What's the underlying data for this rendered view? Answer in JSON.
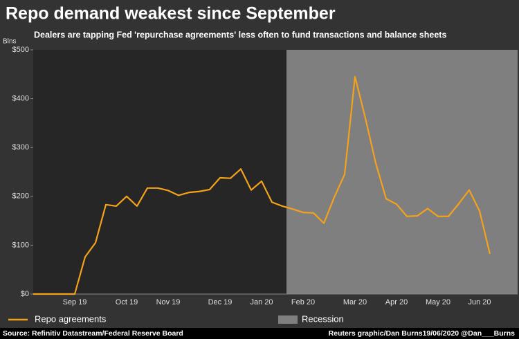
{
  "chart_data": {
    "type": "line",
    "title": "Repo demand weakest since September",
    "subtitle": "Dealers are tapping Fed 'repurchase agreements' less often to fund transactions and balance sheets",
    "y_unit": "Blns",
    "categories": [
      null,
      null,
      null,
      null,
      "Sep 19",
      null,
      null,
      null,
      null,
      "Oct 19",
      null,
      null,
      null,
      "Nov 19",
      null,
      null,
      null,
      null,
      "Dec 19",
      null,
      null,
      null,
      "Jan 20",
      null,
      null,
      null,
      "Feb 20",
      null,
      null,
      null,
      null,
      "Mar 20",
      null,
      null,
      null,
      "Apr 20",
      null,
      null,
      null,
      "May 20",
      null,
      null,
      null,
      "Jun 20",
      null
    ],
    "series": [
      {
        "name": "Repo agreements",
        "color": "#f5a21b",
        "values": [
          0,
          0,
          0,
          0,
          0,
          76,
          105,
          183,
          180,
          200,
          180,
          217,
          217,
          212,
          202,
          208,
          210,
          214,
          238,
          237,
          256,
          213,
          231,
          188,
          180,
          174,
          167,
          166,
          145,
          198,
          245,
          445,
          360,
          268,
          195,
          184,
          159,
          160,
          175,
          159,
          159,
          185,
          213,
          170,
          82
        ]
      }
    ],
    "shaded_region_label": "Recession",
    "ylim": [
      0,
      500
    ],
    "yticks": [
      {
        "value": 0,
        "label": "$0"
      },
      {
        "value": 100,
        "label": "$100"
      },
      {
        "value": 200,
        "label": "$200"
      },
      {
        "value": 300,
        "label": "$300"
      },
      {
        "value": 400,
        "label": "$400"
      },
      {
        "value": 500,
        "label": "$500"
      }
    ],
    "source": "Source: Refinitiv Datastream/Federal Reserve Board",
    "credit": "Reuters graphic/Dan Burns19/06/2020 @Dan___Burns"
  }
}
